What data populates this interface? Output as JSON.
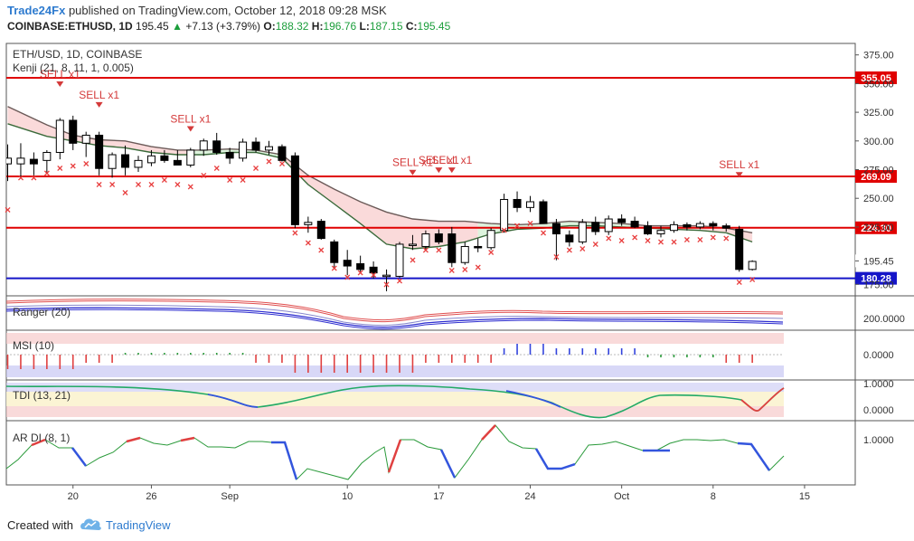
{
  "header": {
    "brand": "Trade24Fx",
    "published_text": "published on TradingView.com, October 12, 2018 09:28 MSK",
    "symbol_line": "COINBASE:ETHUSD, 1D",
    "last": "195.45",
    "change": "+7.13 (+3.79%)",
    "open_label": "O:",
    "open": "188.32",
    "high_label": "H:",
    "high": "196.76",
    "low_label": "L:",
    "low": "187.15",
    "close_label": "C:",
    "close": "195.45"
  },
  "footer": {
    "created_with": "Created with",
    "tradingview": "TradingView"
  },
  "colors": {
    "up_candle": "#ffffff",
    "down_candle": "#000000",
    "hline_red": "#e00000",
    "hline_blue": "#1515c8",
    "sell": "#d43a3a",
    "cross": "#e84040",
    "kijun_fill_red": "#f9d6d6",
    "kijun_fill_green": "#d9f2d9"
  },
  "chart_data": [
    {
      "type": "candlestick",
      "title": "ETH/USD, 1D, COINBASE",
      "indicator_label": "Kenji (21, 8, 11, 1, 0.005)",
      "y_ticks": [
        "375.00",
        "350.00",
        "325.00",
        "300.00",
        "275.00",
        "250.00",
        "225.00",
        "195.45",
        "175.00"
      ],
      "ylim": [
        165,
        385
      ],
      "x_ticks": [
        {
          "label": "20",
          "day": 20
        },
        {
          "label": "26",
          "day": 26
        },
        {
          "label": "Sep",
          "day": 32
        },
        {
          "label": "10",
          "day": 41
        },
        {
          "label": "17",
          "day": 48
        },
        {
          "label": "24",
          "day": 55
        },
        {
          "label": "Oct",
          "day": 62
        },
        {
          "label": "8",
          "day": 69
        },
        {
          "label": "15",
          "day": 76
        }
      ],
      "candles": [
        {
          "d": 15,
          "o": 280,
          "h": 297,
          "l": 265,
          "c": 285
        },
        {
          "d": 16,
          "o": 280,
          "h": 298,
          "l": 268,
          "c": 285
        },
        {
          "d": 17,
          "o": 284,
          "h": 290,
          "l": 270,
          "c": 280
        },
        {
          "d": 18,
          "o": 283,
          "h": 292,
          "l": 272,
          "c": 290
        },
        {
          "d": 19,
          "o": 290,
          "h": 320,
          "l": 284,
          "c": 318
        },
        {
          "d": 20,
          "o": 318,
          "h": 322,
          "l": 292,
          "c": 298
        },
        {
          "d": 21,
          "o": 298,
          "h": 308,
          "l": 286,
          "c": 305
        },
        {
          "d": 22,
          "o": 305,
          "h": 308,
          "l": 270,
          "c": 276
        },
        {
          "d": 23,
          "o": 276,
          "h": 290,
          "l": 268,
          "c": 288
        },
        {
          "d": 24,
          "o": 288,
          "h": 296,
          "l": 270,
          "c": 277
        },
        {
          "d": 25,
          "o": 277,
          "h": 287,
          "l": 273,
          "c": 283
        },
        {
          "d": 26,
          "o": 281,
          "h": 292,
          "l": 278,
          "c": 287
        },
        {
          "d": 27,
          "o": 287,
          "h": 292,
          "l": 281,
          "c": 283
        },
        {
          "d": 28,
          "o": 283,
          "h": 292,
          "l": 279,
          "c": 279
        },
        {
          "d": 29,
          "o": 279,
          "h": 294,
          "l": 277,
          "c": 292
        },
        {
          "d": 30,
          "o": 292,
          "h": 302,
          "l": 287,
          "c": 300
        },
        {
          "d": 31,
          "o": 300,
          "h": 307,
          "l": 288,
          "c": 290
        },
        {
          "d": 32,
          "o": 290,
          "h": 294,
          "l": 280,
          "c": 285
        },
        {
          "d": 33,
          "o": 285,
          "h": 302,
          "l": 282,
          "c": 299
        },
        {
          "d": 34,
          "o": 299,
          "h": 303,
          "l": 290,
          "c": 292
        },
        {
          "d": 35,
          "o": 292,
          "h": 300,
          "l": 288,
          "c": 295
        },
        {
          "d": 36,
          "o": 295,
          "h": 297,
          "l": 282,
          "c": 283
        },
        {
          "d": 37,
          "o": 287,
          "h": 290,
          "l": 224,
          "c": 227
        },
        {
          "d": 38,
          "o": 227,
          "h": 234,
          "l": 220,
          "c": 229
        },
        {
          "d": 39,
          "o": 230,
          "h": 232,
          "l": 214,
          "c": 215
        },
        {
          "d": 40,
          "o": 212,
          "h": 214,
          "l": 189,
          "c": 194
        },
        {
          "d": 41,
          "o": 196,
          "h": 205,
          "l": 183,
          "c": 191
        },
        {
          "d": 42,
          "o": 193,
          "h": 200,
          "l": 185,
          "c": 188
        },
        {
          "d": 43,
          "o": 190,
          "h": 195,
          "l": 180,
          "c": 185
        },
        {
          "d": 44,
          "o": 183,
          "h": 188,
          "l": 169,
          "c": 183
        },
        {
          "d": 45,
          "o": 182,
          "h": 212,
          "l": 181,
          "c": 210
        },
        {
          "d": 46,
          "o": 210,
          "h": 218,
          "l": 205,
          "c": 210
        },
        {
          "d": 47,
          "o": 208,
          "h": 222,
          "l": 205,
          "c": 219
        },
        {
          "d": 48,
          "o": 219,
          "h": 223,
          "l": 210,
          "c": 212
        },
        {
          "d": 49,
          "o": 219,
          "h": 225,
          "l": 190,
          "c": 194
        },
        {
          "d": 50,
          "o": 194,
          "h": 212,
          "l": 192,
          "c": 208
        },
        {
          "d": 51,
          "o": 208,
          "h": 215,
          "l": 203,
          "c": 207
        },
        {
          "d": 52,
          "o": 207,
          "h": 224,
          "l": 205,
          "c": 222
        },
        {
          "d": 53,
          "o": 222,
          "h": 254,
          "l": 220,
          "c": 249
        },
        {
          "d": 54,
          "o": 249,
          "h": 256,
          "l": 238,
          "c": 242
        },
        {
          "d": 55,
          "o": 242,
          "h": 252,
          "l": 238,
          "c": 247
        },
        {
          "d": 56,
          "o": 247,
          "h": 249,
          "l": 230,
          "c": 228
        },
        {
          "d": 57,
          "o": 228,
          "h": 232,
          "l": 196,
          "c": 219
        },
        {
          "d": 58,
          "o": 218,
          "h": 222,
          "l": 208,
          "c": 212
        },
        {
          "d": 59,
          "o": 212,
          "h": 232,
          "l": 210,
          "c": 229
        },
        {
          "d": 60,
          "o": 229,
          "h": 234,
          "l": 218,
          "c": 221
        },
        {
          "d": 61,
          "o": 221,
          "h": 235,
          "l": 218,
          "c": 232
        },
        {
          "d": 62,
          "o": 232,
          "h": 236,
          "l": 226,
          "c": 229
        },
        {
          "d": 63,
          "o": 230,
          "h": 234,
          "l": 224,
          "c": 225
        },
        {
          "d": 64,
          "o": 226,
          "h": 230,
          "l": 218,
          "c": 219
        },
        {
          "d": 65,
          "o": 219,
          "h": 226,
          "l": 216,
          "c": 222
        },
        {
          "d": 66,
          "o": 222,
          "h": 230,
          "l": 220,
          "c": 227
        },
        {
          "d": 67,
          "o": 227,
          "h": 229,
          "l": 222,
          "c": 225
        },
        {
          "d": 68,
          "o": 225,
          "h": 230,
          "l": 223,
          "c": 228
        },
        {
          "d": 69,
          "o": 228,
          "h": 230,
          "l": 222,
          "c": 226
        },
        {
          "d": 70,
          "o": 226,
          "h": 228,
          "l": 221,
          "c": 224
        },
        {
          "d": 71,
          "o": 223,
          "h": 226,
          "l": 186,
          "c": 188
        },
        {
          "d": 72,
          "o": 188,
          "h": 196,
          "l": 187,
          "c": 195
        }
      ],
      "kijun_upper": [
        [
          15,
          330
        ],
        [
          18,
          314
        ],
        [
          20,
          305
        ],
        [
          22,
          301
        ],
        [
          24,
          300
        ],
        [
          26,
          295
        ],
        [
          28,
          292
        ],
        [
          30,
          292
        ],
        [
          32,
          293
        ],
        [
          34,
          292
        ],
        [
          36,
          288
        ],
        [
          38,
          270
        ],
        [
          40,
          258
        ],
        [
          42,
          247
        ],
        [
          44,
          238
        ],
        [
          46,
          232
        ],
        [
          48,
          230
        ],
        [
          50,
          230
        ],
        [
          52,
          228
        ],
        [
          54,
          227
        ],
        [
          56,
          228
        ],
        [
          58,
          230
        ],
        [
          60,
          229
        ],
        [
          62,
          228
        ],
        [
          64,
          226
        ],
        [
          66,
          226
        ],
        [
          68,
          226
        ],
        [
          70,
          224
        ],
        [
          72,
          220
        ]
      ],
      "kijun_lower": [
        [
          15,
          315
        ],
        [
          18,
          304
        ],
        [
          20,
          300
        ],
        [
          22,
          296
        ],
        [
          24,
          294
        ],
        [
          26,
          290
        ],
        [
          28,
          288
        ],
        [
          30,
          288
        ],
        [
          32,
          290
        ],
        [
          34,
          290
        ],
        [
          36,
          285
        ],
        [
          38,
          262
        ],
        [
          40,
          245
        ],
        [
          42,
          228
        ],
        [
          44,
          210
        ],
        [
          46,
          206
        ],
        [
          48,
          208
        ],
        [
          50,
          212
        ],
        [
          52,
          219
        ],
        [
          54,
          223
        ],
        [
          56,
          224
        ],
        [
          58,
          226
        ],
        [
          60,
          226
        ],
        [
          62,
          225
        ],
        [
          64,
          224
        ],
        [
          66,
          223
        ],
        [
          68,
          222
        ],
        [
          70,
          220
        ],
        [
          72,
          212
        ]
      ],
      "sell_signals": [
        {
          "d": 19,
          "label": "SELL x1"
        },
        {
          "d": 22,
          "label": "SELL x1"
        },
        {
          "d": 29,
          "label": "SELL x1"
        },
        {
          "d": 46,
          "label": "SELL x1"
        },
        {
          "d": 48,
          "label": "SELL x1"
        },
        {
          "d": 49,
          "label": "SELL x1"
        },
        {
          "d": 71,
          "label": "SELL x1"
        }
      ],
      "crosses": [
        [
          15,
          240
        ],
        [
          16,
          268
        ],
        [
          17,
          268
        ],
        [
          18,
          272
        ],
        [
          19,
          276
        ],
        [
          20,
          278
        ],
        [
          21,
          280
        ],
        [
          22,
          262
        ],
        [
          23,
          262
        ],
        [
          24,
          255
        ],
        [
          25,
          262
        ],
        [
          26,
          262
        ],
        [
          27,
          266
        ],
        [
          28,
          262
        ],
        [
          29,
          260
        ],
        [
          30,
          270
        ],
        [
          31,
          276
        ],
        [
          32,
          266
        ],
        [
          33,
          266
        ],
        [
          34,
          276
        ],
        [
          35,
          282
        ],
        [
          36,
          280
        ],
        [
          37,
          220
        ],
        [
          38,
          211
        ],
        [
          39,
          205
        ],
        [
          40,
          189
        ],
        [
          41,
          181
        ],
        [
          42,
          185
        ],
        [
          43,
          183
        ],
        [
          44,
          175
        ],
        [
          45,
          178
        ],
        [
          46,
          196
        ],
        [
          47,
          205
        ],
        [
          48,
          205
        ],
        [
          49,
          187
        ],
        [
          50,
          188
        ],
        [
          51,
          190
        ],
        [
          52,
          203
        ],
        [
          53,
          222
        ],
        [
          54,
          226
        ],
        [
          55,
          228
        ],
        [
          56,
          220
        ],
        [
          57,
          199
        ],
        [
          58,
          205
        ],
        [
          59,
          206
        ],
        [
          60,
          210
        ],
        [
          61,
          215
        ],
        [
          62,
          213
        ],
        [
          63,
          216
        ],
        [
          64,
          213
        ],
        [
          65,
          212
        ],
        [
          66,
          212
        ],
        [
          67,
          214
        ],
        [
          68,
          214
        ],
        [
          69,
          216
        ],
        [
          70,
          215
        ],
        [
          71,
          177
        ],
        [
          72,
          179
        ]
      ],
      "horizontal_lines": [
        {
          "value": 355.05,
          "label": "355.05",
          "color": "#e00000"
        },
        {
          "value": 269.09,
          "label": "269.09",
          "color": "#e00000"
        },
        {
          "value": 224.3,
          "label": "224.30",
          "color": "#e00000"
        },
        {
          "value": 180.28,
          "label": "180.28",
          "color": "#1515c8"
        }
      ]
    },
    {
      "type": "line",
      "title": "Ranger (20)",
      "y_ticks": [
        "200.0000"
      ]
    },
    {
      "type": "bar",
      "title": "MSI (10)",
      "y_ticks": [
        "0.0000"
      ]
    },
    {
      "type": "line",
      "title": "TDI (13, 21)",
      "y_ticks": [
        "1.0000",
        "0.0000"
      ]
    },
    {
      "type": "line",
      "title": "AR DI (8, 1)",
      "y_ticks": [
        "1.0000"
      ]
    }
  ]
}
